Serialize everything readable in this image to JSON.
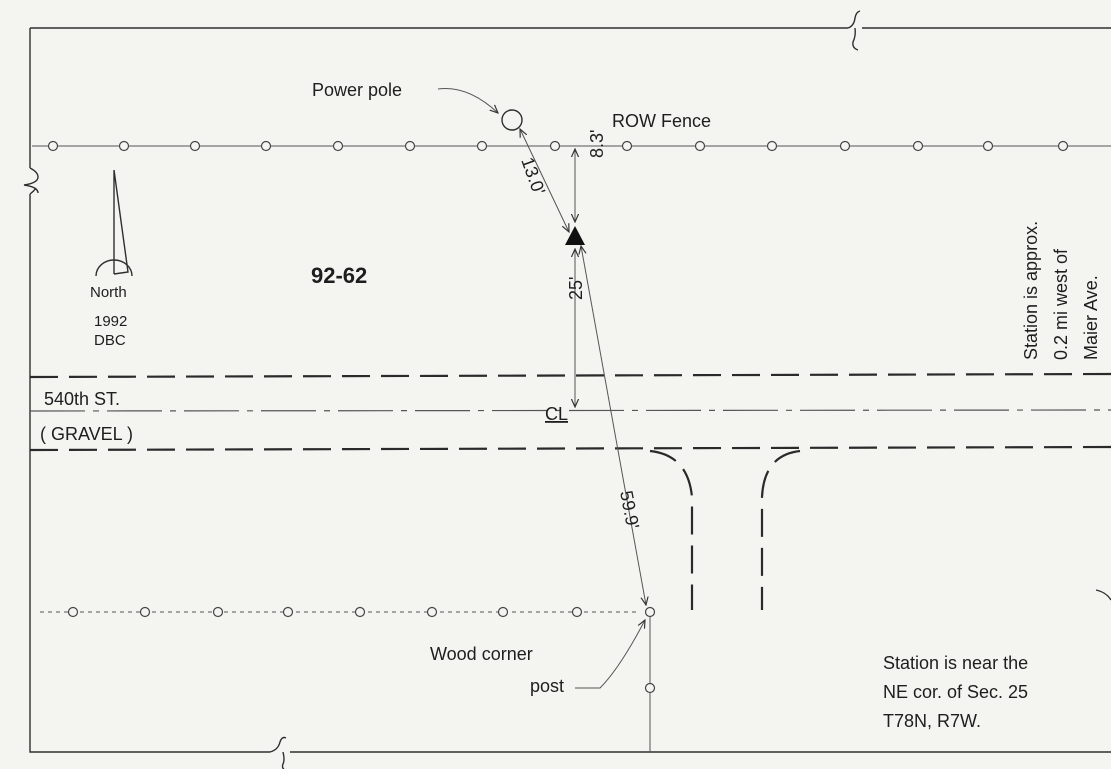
{
  "labels": {
    "power_pole": "Power pole",
    "row_fence": "ROW  Fence",
    "station_id": "92-62",
    "north": "North",
    "year": "1992",
    "agency": "DBC",
    "street_name": "540th  ST.",
    "street_surface": "( GRAVEL )",
    "centerline": "CL",
    "wood_corner_post_line1": "Wood corner",
    "wood_corner_post_line2": "post",
    "location_note_line1": "Station is approx.",
    "location_note_line2": "0.2 mi west of",
    "location_note_line3": "Maier Ave.",
    "section_note_line1": "Station is near the",
    "section_note_line2": "NE cor. of Sec. 25",
    "section_note_line3": "T78N, R7W."
  },
  "measurements": {
    "pole_to_station": "13.0'",
    "fence_to_station": "8.3'",
    "station_to_centerline": "25'",
    "station_to_corner_post": "59.9'"
  },
  "colors": {
    "paper": "#f4f4f1",
    "ink": "#2f2f2f"
  }
}
